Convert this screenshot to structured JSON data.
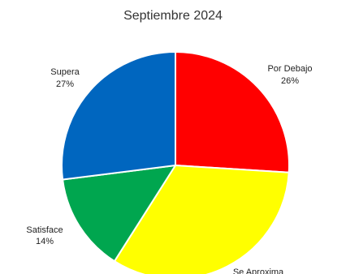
{
  "chart_data": {
    "type": "pie",
    "title": "Septiembre 2024",
    "slices": [
      {
        "label": "Por Debajo",
        "value": 26,
        "display": "26%",
        "color": "#FF0000"
      },
      {
        "label": "Se Aproxima",
        "value": 33,
        "display": "",
        "color": "#FFFF00"
      },
      {
        "label": "Satisface",
        "value": 14,
        "display": "14%",
        "color": "#00A64F"
      },
      {
        "label": "Supera",
        "value": 27,
        "display": "27%",
        "color": "#0066BF"
      }
    ],
    "start": "12 o'clock",
    "direction": "clockwise",
    "legend": "none"
  }
}
